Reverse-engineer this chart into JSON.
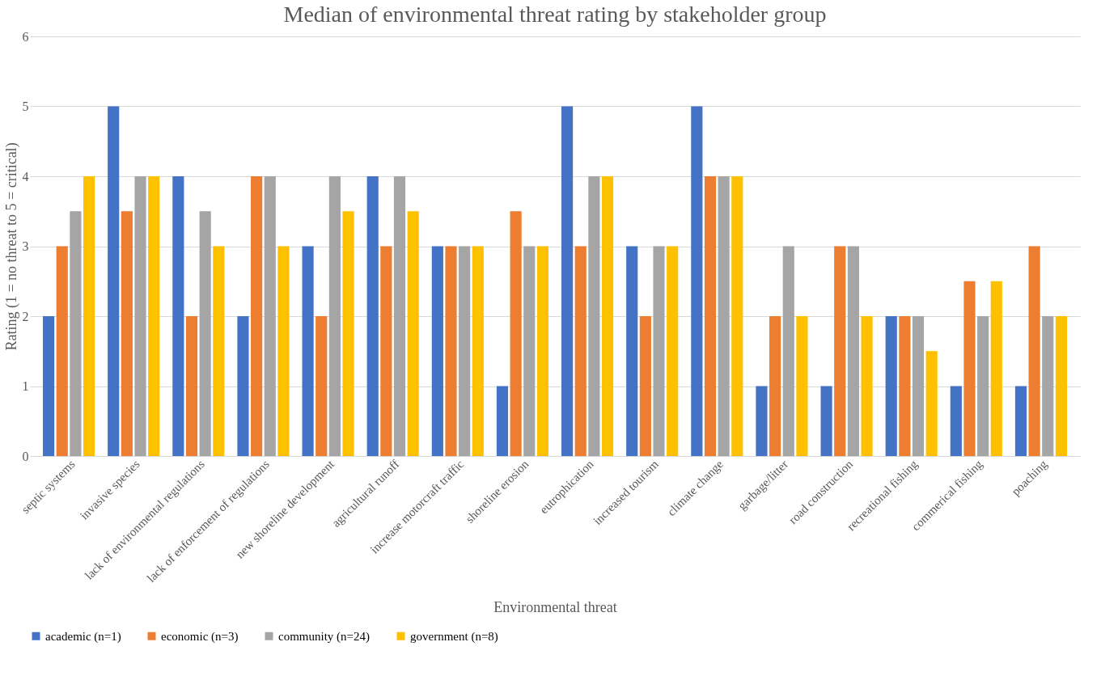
{
  "chart_data": {
    "type": "bar",
    "title": "Median of environmental threat rating by stakeholder group",
    "xlabel": "Environmental threat",
    "ylabel": "Rating (1 = no threat to 5 = critical)",
    "categories": [
      "septic systems",
      "invasive species",
      "lack of environmental regulations",
      "lack of enforcement of regulations",
      "new shoreline development",
      "agricultural runoff",
      "increase motorcraft traffic",
      "shoreline erosion",
      "eutrophication",
      "increased tourism",
      "climate change",
      "garbage/litter",
      "road construction",
      "recreational fishing",
      "commerical fishing",
      "poaching"
    ],
    "series": [
      {
        "name": "academic (n=1)",
        "color": "#4472c4",
        "values": [
          2,
          5,
          4,
          2,
          3,
          4,
          3,
          1,
          5,
          3,
          5,
          1,
          1,
          2,
          1,
          1
        ]
      },
      {
        "name": "economic (n=3)",
        "color": "#ed7d31",
        "values": [
          3,
          3.5,
          2,
          4,
          2,
          3,
          3,
          3.5,
          3,
          2,
          4,
          2,
          3,
          2,
          2.5,
          3
        ]
      },
      {
        "name": "community (n=24)",
        "color": "#a5a5a5",
        "values": [
          3.5,
          4,
          3.5,
          4,
          4,
          4,
          3,
          3,
          4,
          3,
          4,
          3,
          3,
          2,
          2,
          2
        ]
      },
      {
        "name": "government (n=8)",
        "color": "#ffc000",
        "values": [
          4,
          4,
          3,
          3,
          3.5,
          3.5,
          3,
          3,
          4,
          3,
          4,
          2,
          2,
          1.5,
          2.5,
          2
        ]
      }
    ],
    "ylim": [
      0,
      6
    ],
    "yticks": [
      0,
      1,
      2,
      3,
      4,
      5,
      6
    ],
    "grid": "y",
    "legend": "bottom"
  }
}
